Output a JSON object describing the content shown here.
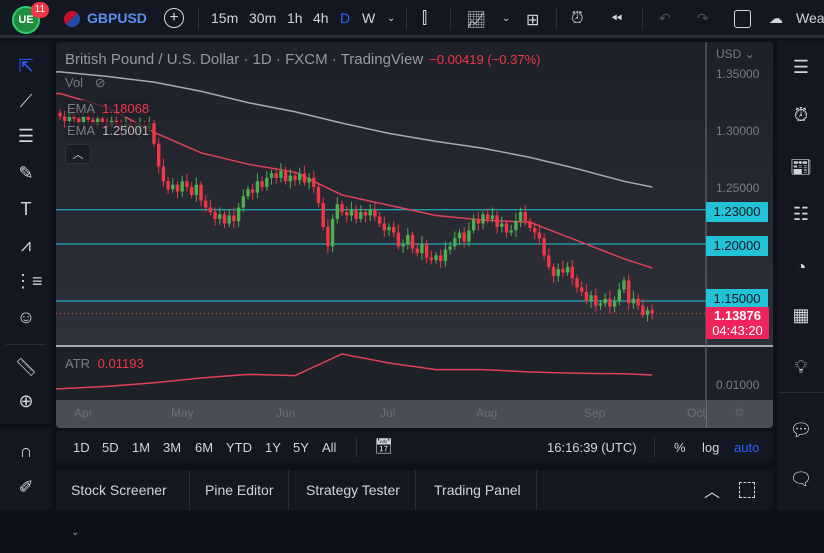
{
  "topbar": {
    "notification_count": "11",
    "symbol": "GBPUSD",
    "intervals": [
      "15m",
      "30m",
      "1h",
      "4h",
      "D",
      "W"
    ],
    "active_interval": "D",
    "weather_label": "Wea"
  },
  "legend": {
    "title": "British Pound / U.S. Dollar · 1D · FXCM · TradingView",
    "change": "−0.00419 (−0.37%)",
    "vol_label": "Vol",
    "ema1_label": "EMA",
    "ema1_value": "1.18068",
    "ema2_label": "EMA",
    "ema2_value": "1.25001",
    "atr_label": "ATR",
    "atr_value": "0.01193"
  },
  "price_axis": {
    "currency": "USD",
    "ticks": [
      "1.35000",
      "1.30000",
      "1.25000"
    ],
    "levels": [
      "1.23000",
      "1.20000",
      "1.15000"
    ],
    "current_price": "1.13876",
    "countdown": "04:43:20",
    "atr_tick": "0.01000"
  },
  "time_axis": {
    "labels": [
      "Apr",
      "May",
      "Jun",
      "Jul",
      "Aug",
      "Sep",
      "Oct"
    ]
  },
  "timeframe_bar": {
    "ranges": [
      "1D",
      "5D",
      "1M",
      "3M",
      "6M",
      "YTD",
      "1Y",
      "5Y",
      "All"
    ],
    "clock": "16:16:39 (UTC)",
    "percent": "%",
    "log": "log",
    "auto": "auto"
  },
  "bottom_tabs": [
    "Stock Screener",
    "Pine Editor",
    "Strategy Tester",
    "Trading Panel"
  ],
  "colors": {
    "up": "#26a69a",
    "candle_up": "#4caf50",
    "down": "#f23645",
    "ema_fast": "#e0405a",
    "ema_slow": "#a8a9ad",
    "level": "#22c3d6",
    "accent": "#2962ff"
  },
  "chart_data": {
    "type": "candlestick",
    "price_range": [
      1.12,
      1.36
    ],
    "horizontal_levels": [
      1.23,
      1.2,
      1.15
    ],
    "closes": [
      1.312,
      1.308,
      1.315,
      1.31,
      1.306,
      1.312,
      1.309,
      1.304,
      1.31,
      1.307,
      1.303,
      1.308,
      1.305,
      1.3,
      1.306,
      1.302,
      1.298,
      1.304,
      1.3,
      1.306,
      1.288,
      1.268,
      1.255,
      1.248,
      1.252,
      1.246,
      1.255,
      1.25,
      1.243,
      1.252,
      1.238,
      1.232,
      1.228,
      1.222,
      1.226,
      1.218,
      1.225,
      1.22,
      1.232,
      1.242,
      1.248,
      1.245,
      1.255,
      1.25,
      1.258,
      1.262,
      1.258,
      1.264,
      1.255,
      1.26,
      1.256,
      1.262,
      1.254,
      1.258,
      1.25,
      1.236,
      1.215,
      1.198,
      1.222,
      1.235,
      1.228,
      1.225,
      1.23,
      1.222,
      1.228,
      1.225,
      1.23,
      1.224,
      1.218,
      1.212,
      1.215,
      1.21,
      1.198,
      1.2,
      1.208,
      1.196,
      1.192,
      1.2,
      1.188,
      1.186,
      1.19,
      1.185,
      1.195,
      1.198,
      1.205,
      1.21,
      1.202,
      1.212,
      1.222,
      1.218,
      1.226,
      1.222,
      1.225,
      1.215,
      1.218,
      1.21,
      1.212,
      1.22,
      1.228,
      1.22,
      1.214,
      1.21,
      1.205,
      1.19,
      1.18,
      1.172,
      1.178,
      1.175,
      1.18,
      1.17,
      1.162,
      1.158,
      1.15,
      1.155,
      1.146,
      1.148,
      1.152,
      1.145,
      1.15,
      1.16,
      1.168,
      1.148,
      1.152,
      1.146,
      1.138,
      1.142,
      1.139
    ],
    "ema_fast_every10": [
      1.332,
      1.32,
      1.298,
      1.28,
      1.27,
      1.263,
      1.243,
      1.234,
      1.225,
      1.221,
      1.219,
      1.203,
      1.187,
      1.179
    ],
    "ema_slow_every10": [
      1.351,
      1.347,
      1.342,
      1.334,
      1.324,
      1.316,
      1.306,
      1.297,
      1.29,
      1.284,
      1.276,
      1.266,
      1.255,
      1.25
    ],
    "atr_every10": [
      0.0092,
      0.0096,
      0.0102,
      0.011,
      0.0116,
      0.0114,
      0.015,
      0.0135,
      0.0124,
      0.0124,
      0.012,
      0.0118,
      0.0117,
      0.0115
    ]
  }
}
